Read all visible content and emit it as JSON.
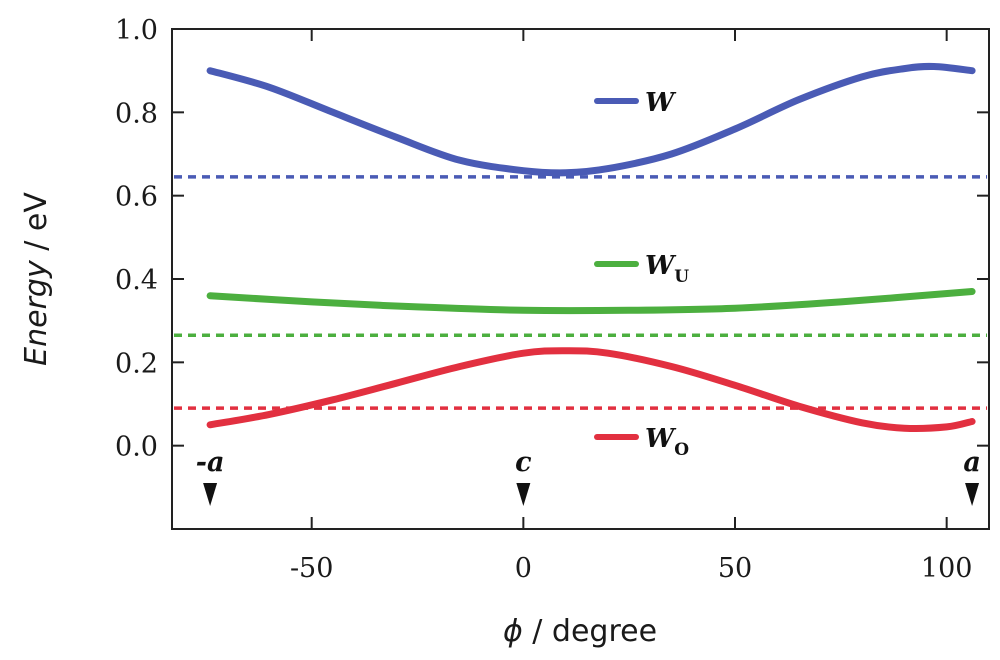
{
  "chart_data": {
    "type": "line",
    "xlabel_symbol": "ϕ",
    "xlabel_text": " / degree",
    "ylabel_var": "Energy",
    "ylabel_text": " / eV",
    "xlim": [
      -83,
      110
    ],
    "ylim": [
      -0.2,
      1.0
    ],
    "xticks": [
      -50,
      0,
      50,
      100
    ],
    "xtick_labels": [
      "-50",
      "0",
      "50",
      "100"
    ],
    "yticks": [
      0.0,
      0.2,
      0.4,
      0.6,
      0.8,
      1.0
    ],
    "ytick_labels": [
      "0.0",
      "0.2",
      "0.4",
      "0.6",
      "0.8",
      "1.0"
    ],
    "series": [
      {
        "name": "W",
        "sub": "",
        "color": "#4a5bb5",
        "x": [
          -74,
          -60,
          -45,
          -30,
          -15,
          0,
          10,
          20,
          35,
          50,
          65,
          80,
          90,
          97,
          106
        ],
        "y": [
          0.9,
          0.86,
          0.8,
          0.74,
          0.685,
          0.66,
          0.655,
          0.665,
          0.7,
          0.76,
          0.83,
          0.885,
          0.905,
          0.91,
          0.9
        ]
      },
      {
        "name": "W",
        "sub": "U",
        "color": "#4caf3f",
        "x": [
          -74,
          -50,
          -25,
          0,
          25,
          50,
          75,
          106
        ],
        "y": [
          0.36,
          0.345,
          0.333,
          0.325,
          0.325,
          0.33,
          0.345,
          0.37
        ]
      },
      {
        "name": "W",
        "sub": "O",
        "color": "#e23040",
        "x": [
          -74,
          -60,
          -45,
          -30,
          -15,
          0,
          10,
          20,
          35,
          50,
          65,
          80,
          90,
          100,
          106
        ],
        "y": [
          0.05,
          0.075,
          0.11,
          0.15,
          0.19,
          0.222,
          0.228,
          0.222,
          0.19,
          0.145,
          0.095,
          0.055,
          0.042,
          0.045,
          0.058
        ]
      }
    ],
    "reference_lines": [
      {
        "y": 0.645,
        "color": "#4a5bb5"
      },
      {
        "y": 0.265,
        "color": "#4caf3f"
      },
      {
        "y": 0.09,
        "color": "#e23040"
      }
    ],
    "markers": [
      {
        "x": -74,
        "label": "-a"
      },
      {
        "x": 0,
        "label": "c"
      },
      {
        "x": 106,
        "label": "a"
      }
    ],
    "legend_placement": "center-right, stacked vertically"
  }
}
